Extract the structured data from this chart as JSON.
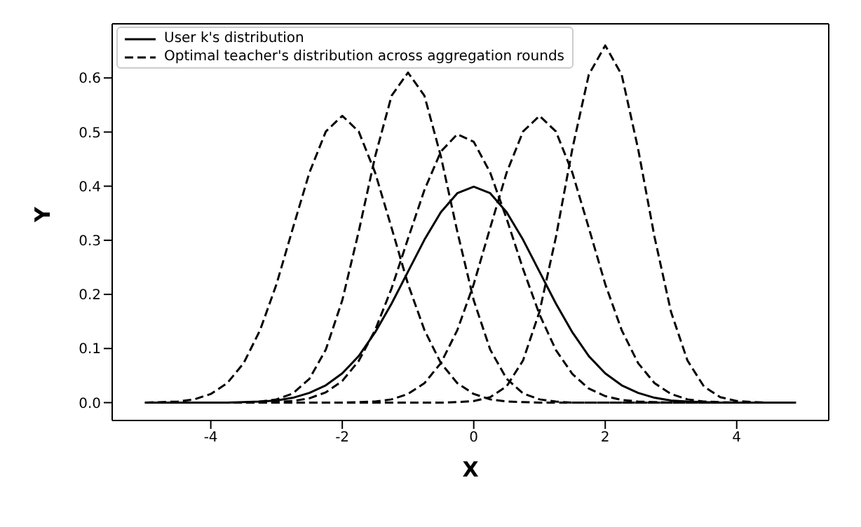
{
  "chart_data": {
    "type": "line",
    "xlabel": "X",
    "ylabel": "Y",
    "x": [
      -5,
      -4.75,
      -4.5,
      -4.25,
      -4,
      -3.75,
      -3.5,
      -3.25,
      -3,
      -2.75,
      -2.5,
      -2.25,
      -2,
      -1.75,
      -1.5,
      -1.25,
      -1,
      -0.75,
      -0.5,
      -0.25,
      0,
      0.25,
      0.5,
      0.75,
      1,
      1.25,
      1.5,
      1.75,
      2,
      2.25,
      2.5,
      2.75,
      3,
      3.25,
      3.5,
      3.75,
      4,
      4.25,
      4.5,
      4.75,
      4.9
    ],
    "series": [
      {
        "name": "User k's distribution",
        "color": "#000000",
        "line_style": "solid",
        "values": [
          0,
          0,
          0,
          0,
          0,
          0,
          0.001,
          0.002,
          0.004,
          0.009,
          0.018,
          0.032,
          0.054,
          0.086,
          0.13,
          0.183,
          0.242,
          0.301,
          0.352,
          0.387,
          0.399,
          0.387,
          0.352,
          0.301,
          0.242,
          0.183,
          0.13,
          0.086,
          0.054,
          0.032,
          0.018,
          0.009,
          0.004,
          0.002,
          0.001,
          0,
          0,
          0,
          0,
          0,
          0
        ]
      },
      {
        "name": "Optimal teacher's distribution across aggregation rounds",
        "color": "#000000",
        "line_style": "dashed",
        "values": [
          0,
          0.001,
          0.002,
          0.006,
          0.016,
          0.036,
          0.073,
          0.134,
          0.219,
          0.323,
          0.425,
          0.501,
          0.53,
          0.501,
          0.425,
          0.323,
          0.219,
          0.134,
          0.073,
          0.036,
          0.016,
          0.006,
          0.002,
          0.001,
          0,
          0,
          0,
          0,
          0,
          0,
          0,
          0,
          0,
          0,
          0,
          0,
          0,
          0,
          0,
          0,
          0
        ]
      },
      {
        "color": "#000000",
        "line_style": "dashed",
        "values": [
          0,
          0,
          0,
          0,
          0,
          0,
          0,
          0.002,
          0.006,
          0.017,
          0.044,
          0.098,
          0.189,
          0.316,
          0.455,
          0.567,
          0.61,
          0.567,
          0.455,
          0.316,
          0.189,
          0.098,
          0.044,
          0.017,
          0.006,
          0.002,
          0,
          0,
          0,
          0,
          0,
          0,
          0,
          0,
          0,
          0,
          0,
          0,
          0,
          0,
          0
        ]
      },
      {
        "color": "#000000",
        "line_style": "dashed",
        "values": [
          0,
          0,
          0,
          0,
          0,
          0,
          0,
          0,
          0.001,
          0.003,
          0.008,
          0.019,
          0.04,
          0.077,
          0.134,
          0.211,
          0.303,
          0.393,
          0.464,
          0.496,
          0.482,
          0.425,
          0.34,
          0.247,
          0.163,
          0.097,
          0.053,
          0.026,
          0.012,
          0.005,
          0.002,
          0.001,
          0,
          0,
          0,
          0,
          0,
          0,
          0,
          0,
          0
        ]
      },
      {
        "color": "#000000",
        "line_style": "dashed",
        "values": [
          0,
          0,
          0,
          0,
          0,
          0,
          0,
          0,
          0,
          0,
          0,
          0,
          0,
          0.001,
          0.002,
          0.006,
          0.016,
          0.036,
          0.073,
          0.134,
          0.219,
          0.323,
          0.425,
          0.501,
          0.53,
          0.501,
          0.425,
          0.323,
          0.219,
          0.134,
          0.073,
          0.036,
          0.016,
          0.006,
          0.002,
          0.001,
          0,
          0,
          0,
          0,
          0
        ]
      },
      {
        "color": "#000000",
        "line_style": "dashed",
        "values": [
          0,
          0,
          0,
          0,
          0,
          0,
          0,
          0,
          0,
          0,
          0,
          0,
          0,
          0,
          0,
          0,
          0,
          0,
          0,
          0.001,
          0.003,
          0.01,
          0.03,
          0.078,
          0.168,
          0.306,
          0.469,
          0.606,
          0.66,
          0.606,
          0.469,
          0.306,
          0.168,
          0.078,
          0.03,
          0.01,
          0.003,
          0.001,
          0,
          0,
          0
        ]
      }
    ],
    "xlim": [
      -5.5,
      5.4
    ],
    "xticks": [
      -4,
      -2,
      0,
      2,
      4
    ],
    "ylim": [
      -0.033,
      0.7
    ],
    "yticks": [
      {
        "value": 0,
        "label": "0.0"
      },
      0.1,
      0.2,
      0.3,
      0.4,
      0.5,
      0.6
    ],
    "legend": "top left"
  }
}
